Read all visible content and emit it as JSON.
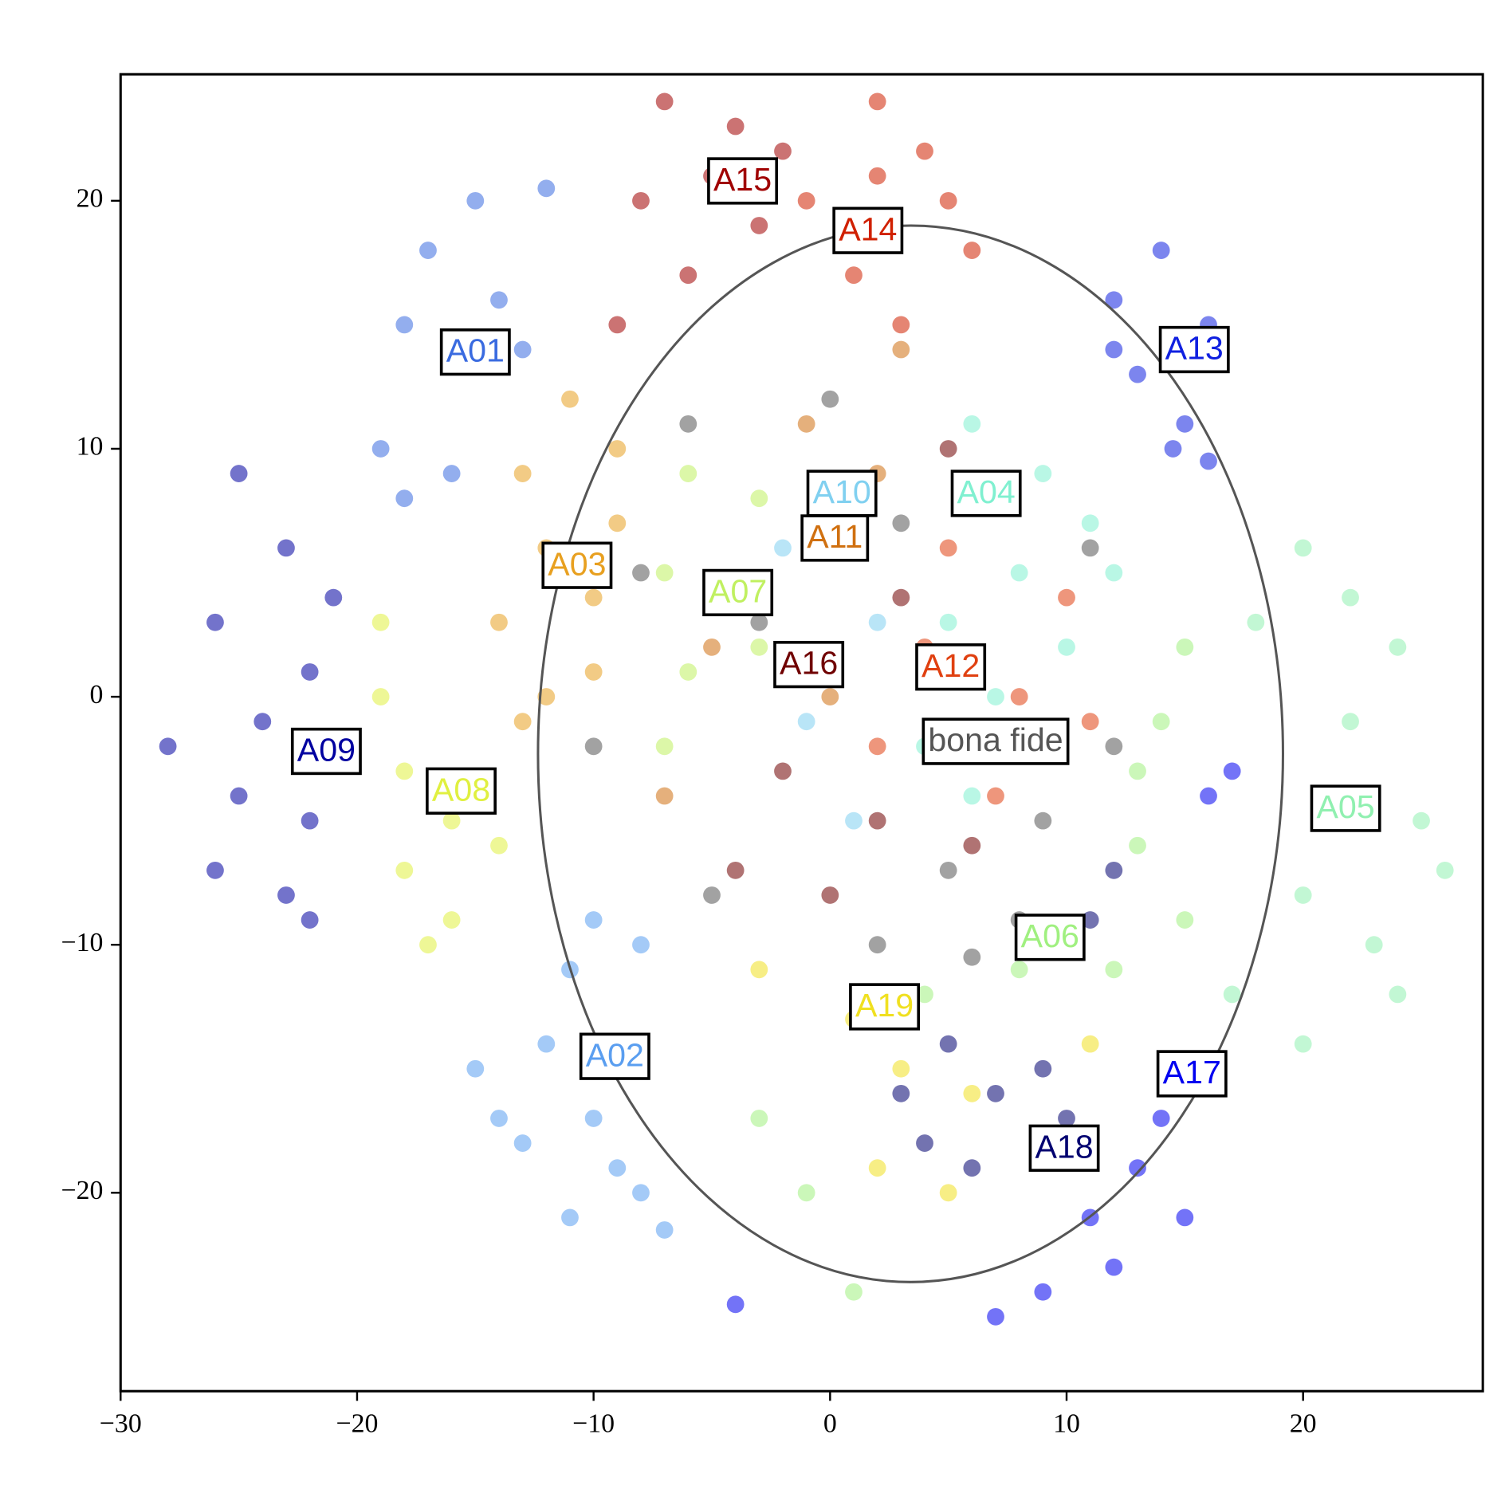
{
  "chart_data": {
    "type": "scatter",
    "xlim": [
      -30,
      27.6
    ],
    "ylim": [
      -28,
      25.1
    ],
    "xticks": [
      {
        "value": -30,
        "label": "−30"
      },
      {
        "value": -20,
        "label": "−20"
      },
      {
        "value": -10,
        "label": "−10"
      },
      0,
      10,
      20
    ],
    "yticks": [
      {
        "value": -20,
        "label": "−20"
      },
      {
        "value": -10,
        "label": "−10"
      },
      0,
      10,
      20
    ],
    "grid": false,
    "ellipse": {
      "center": [
        3.4,
        -2.3
      ],
      "width": 31.5,
      "height": 42.6,
      "color": "#555555"
    },
    "series": [
      {
        "name": "A15",
        "color": "#a00000",
        "label_position": [
          -3.7,
          20.8
        ],
        "x": [
          -7,
          -4,
          -8,
          -6,
          -3,
          -9,
          -2,
          -5
        ],
        "y": [
          24,
          23,
          20,
          17,
          19,
          15,
          22,
          21
        ]
      },
      {
        "name": "A14",
        "color": "#d02000",
        "label_position": [
          1.6,
          18.8
        ],
        "x": [
          2,
          4,
          5,
          1,
          3,
          -1,
          6,
          2
        ],
        "y": [
          24,
          22,
          20,
          17,
          15,
          20,
          18,
          21
        ]
      },
      {
        "name": "A01",
        "color": "#3a6be0",
        "label_position": [
          -15.0,
          13.9
        ],
        "x": [
          -15,
          -12,
          -17,
          -14,
          -18,
          -13,
          -19,
          -16,
          -18
        ],
        "y": [
          20,
          20.5,
          18,
          16,
          15,
          14,
          10,
          9,
          8
        ]
      },
      {
        "name": "A13",
        "color": "#1020e0",
        "label_position": [
          15.4,
          14.0
        ],
        "x": [
          14,
          12,
          16,
          13,
          15,
          16,
          14.5,
          12
        ],
        "y": [
          18,
          16,
          15,
          13,
          11,
          9.5,
          10,
          14
        ]
      },
      {
        "name": "A10",
        "color": "#80d0f0",
        "label_position": [
          0.5,
          8.2
        ],
        "x": [
          0,
          -2,
          2,
          -1,
          1
        ],
        "y": [
          8,
          6,
          3,
          -1,
          -5
        ]
      },
      {
        "name": "A04",
        "color": "#80f0d0",
        "label_position": [
          6.6,
          8.2
        ],
        "x": [
          6,
          9,
          11,
          8,
          5,
          10,
          7,
          4,
          12,
          6
        ],
        "y": [
          11,
          9,
          7,
          5,
          3,
          2,
          0,
          -2,
          5,
          -4
        ]
      },
      {
        "name": "A11",
        "color": "#d07010",
        "label_position": [
          0.2,
          6.4
        ],
        "x": [
          3,
          -1,
          -5,
          -7,
          2,
          0
        ],
        "y": [
          14,
          11,
          2,
          -4,
          9,
          0
        ]
      },
      {
        "name": "A03",
        "color": "#e8a020",
        "label_position": [
          -10.7,
          5.3
        ],
        "x": [
          -11,
          -9,
          -13,
          -12,
          -10,
          -14,
          -12,
          -13,
          -10,
          -9
        ],
        "y": [
          12,
          10,
          9,
          6,
          4,
          3,
          0,
          -1,
          1,
          7
        ]
      },
      {
        "name": "A07",
        "color": "#c0f060",
        "label_position": [
          -3.9,
          4.2
        ],
        "x": [
          -6,
          -3,
          -7,
          -4,
          -6,
          -3,
          -7
        ],
        "y": [
          9,
          8,
          5,
          4,
          1,
          2,
          -2
        ]
      },
      {
        "name": "A16",
        "color": "#700000",
        "label_position": [
          -0.9,
          1.3
        ],
        "x": [
          -2,
          2,
          5,
          6,
          -4,
          8,
          3,
          0
        ],
        "y": [
          -3,
          -5,
          10,
          -6,
          -7,
          -2,
          4,
          -8
        ]
      },
      {
        "name": "A12",
        "color": "#e04010",
        "label_position": [
          5.1,
          1.2
        ],
        "x": [
          4,
          8,
          10,
          7,
          2,
          11,
          5
        ],
        "y": [
          2,
          0,
          4,
          -4,
          -2,
          -1,
          6
        ]
      },
      {
        "name": "bona fide",
        "color": "#555555",
        "label_position": [
          7.0,
          -1.8
        ],
        "x": [
          -6,
          -10,
          -5,
          2,
          8,
          9,
          12,
          11,
          3,
          -3,
          5,
          0,
          -8,
          6
        ],
        "y": [
          11,
          -2,
          -8,
          -10,
          -9,
          -5,
          -2,
          6,
          7,
          3,
          -7,
          12,
          5,
          -10.5
        ]
      },
      {
        "name": "A09",
        "color": "#0000a0",
        "label_position": [
          -21.3,
          -2.2
        ],
        "x": [
          -25,
          -23,
          -26,
          -22,
          -24,
          -28,
          -25,
          -22,
          -26,
          -23,
          -22,
          -21
        ],
        "y": [
          9,
          6,
          3,
          1,
          -1,
          -2,
          -4,
          -5,
          -7,
          -8,
          -9,
          4
        ]
      },
      {
        "name": "A08",
        "color": "#e0f040",
        "label_position": [
          -15.6,
          -3.8
        ],
        "x": [
          -19,
          -19,
          -18,
          -16,
          -18,
          -16,
          -14,
          -17
        ],
        "y": [
          3,
          0,
          -3,
          -5,
          -7,
          -9,
          -6,
          -10
        ]
      },
      {
        "name": "A05",
        "color": "#90f0b0",
        "label_position": [
          21.8,
          -4.5
        ],
        "x": [
          20,
          22,
          24,
          18,
          22,
          25,
          20,
          23,
          24,
          20,
          17,
          26
        ],
        "y": [
          6,
          4,
          2,
          3,
          -1,
          -5,
          -8,
          -10,
          -12,
          -14,
          -12,
          -7
        ]
      },
      {
        "name": "A06",
        "color": "#a0f080",
        "label_position": [
          9.3,
          -9.7
        ],
        "x": [
          15,
          14,
          13,
          12,
          8,
          4,
          -3,
          -1,
          1,
          13,
          15
        ],
        "y": [
          2,
          -1,
          -3,
          -11,
          -11,
          -12,
          -17,
          -20,
          -24,
          -6,
          -9
        ]
      },
      {
        "name": "A19",
        "color": "#f0e020",
        "label_position": [
          2.3,
          -12.5
        ],
        "x": [
          1,
          3,
          2,
          5,
          6,
          11,
          -3
        ],
        "y": [
          -13,
          -15,
          -19,
          -20,
          -16,
          -14,
          -11
        ]
      },
      {
        "name": "A02",
        "color": "#5a9ef0",
        "label_position": [
          -9.1,
          -14.5
        ],
        "x": [
          -10,
          -8,
          -11,
          -12,
          -15,
          -10,
          -13,
          -9,
          -11,
          -8,
          -7,
          -14
        ],
        "y": [
          -9,
          -10,
          -11,
          -14,
          -15,
          -17,
          -18,
          -19,
          -21,
          -20,
          -21.5,
          -17
        ]
      },
      {
        "name": "A17",
        "color": "#0000f0",
        "label_position": [
          15.3,
          -15.2
        ],
        "x": [
          17,
          16,
          14,
          13,
          11,
          15,
          12,
          9,
          7,
          -4
        ],
        "y": [
          -3,
          -4,
          -17,
          -19,
          -21,
          -21,
          -23,
          -24,
          -25,
          -24.5
        ]
      },
      {
        "name": "A18",
        "color": "#000070",
        "label_position": [
          9.9,
          -18.2
        ],
        "x": [
          12,
          11,
          5,
          7,
          4,
          6,
          10,
          9,
          3
        ],
        "y": [
          -7,
          -9,
          -14,
          -16,
          -18,
          -19,
          -17,
          -15,
          -16
        ]
      }
    ]
  }
}
